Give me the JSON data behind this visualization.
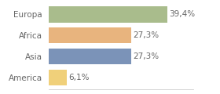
{
  "categories": [
    "Europa",
    "Africa",
    "Asia",
    "America"
  ],
  "values": [
    39.4,
    27.3,
    27.3,
    6.1
  ],
  "labels": [
    "39,4%",
    "27,3%",
    "27,3%",
    "6,1%"
  ],
  "bar_colors": [
    "#a9bc8c",
    "#e8b47e",
    "#7b93b8",
    "#f0d07a"
  ],
  "background_color": "#ffffff",
  "xlim": [
    0,
    48
  ],
  "bar_height": 0.75,
  "label_fontsize": 7.5,
  "category_fontsize": 7.5,
  "text_color": "#666666"
}
